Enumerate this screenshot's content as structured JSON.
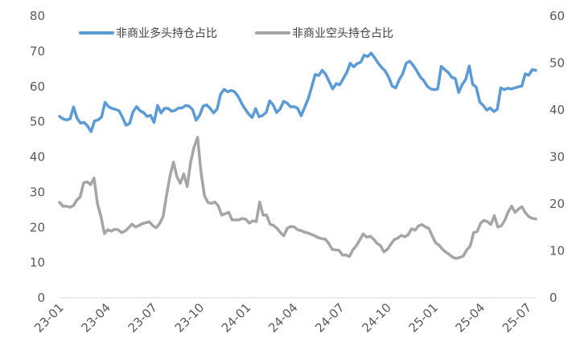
{
  "chart_data": {
    "type": "line",
    "title": "",
    "xlabel": "",
    "ylabel": "",
    "ylim_left": [
      0,
      80
    ],
    "ylim_right": [
      0,
      60
    ],
    "y_ticks_left": [
      "0",
      "10",
      "20",
      "30",
      "40",
      "50",
      "60",
      "70",
      "80"
    ],
    "y_ticks_right": [
      "0",
      "10",
      "20",
      "30",
      "40",
      "50",
      "60"
    ],
    "x_ticks": [
      "23-01",
      "23-04",
      "23-07",
      "23-10",
      "24-01",
      "24-04",
      "24-07",
      "24-10",
      "25-01",
      "25-04",
      "25-07"
    ],
    "grid": false,
    "legend_position": "top-left",
    "series": [
      {
        "name": "非商业多头持仓占比",
        "axis": "left",
        "color": "#5b9bd5",
        "values": [
          51.5,
          50.8,
          50.5,
          50.8,
          54.2,
          51,
          49.6,
          49.8,
          48.8,
          47.2,
          50.2,
          50.5,
          51.3,
          55.5,
          54.3,
          53.8,
          53.5,
          53.1,
          51.2,
          49,
          49.5,
          52.8,
          54.3,
          53.1,
          52.6,
          51.5,
          51.8,
          49.8,
          54.6,
          52.5,
          53.8,
          53.8,
          53,
          53.2,
          53.9,
          53.9,
          54.6,
          54.4,
          53.4,
          50.4,
          51.8,
          54.4,
          54.8,
          53.8,
          52.5,
          53.6,
          57.8,
          59.2,
          58.5,
          58.9,
          58.5,
          57.2,
          55.2,
          53.6,
          52.2,
          51.2,
          53.7,
          51.4,
          51.8,
          52.6,
          55.9,
          54.8,
          52.6,
          53.6,
          55.8,
          55.3,
          54.2,
          54.3,
          53.8,
          51.7,
          54.1,
          56.5,
          59.8,
          63.4,
          63.1,
          64.6,
          63.5,
          61.4,
          59.3,
          60.8,
          60.5,
          62.2,
          63.9,
          66.6,
          65.6,
          66.5,
          66.9,
          68.9,
          68.5,
          69.5,
          68.1,
          66.6,
          65.4,
          64.4,
          62.6,
          60.1,
          59.6,
          61.9,
          63.6,
          66.6,
          67.2,
          66,
          64.5,
          62.7,
          61.7,
          60.1,
          59.3,
          59.1,
          59.3,
          65.7,
          64.8,
          64,
          62.6,
          62.3,
          58.3,
          60.6,
          62,
          65.8,
          60.6,
          59.8,
          55.6,
          54.6,
          53.3,
          53.9,
          52.9,
          53.5,
          59.6,
          59.1,
          59.5,
          59.3,
          59.6,
          59.9,
          60.1,
          63.6,
          63.2,
          64.8,
          64.6
        ]
      },
      {
        "name": "非商业空头持仓占比",
        "axis": "right",
        "color": "#a5a5a5",
        "values": [
          20.3,
          19.5,
          19.5,
          19.3,
          19.6,
          20.8,
          21.5,
          24.5,
          24.7,
          24.1,
          25.5,
          20,
          17.3,
          13.7,
          14.5,
          14.2,
          14.6,
          14.5,
          13.9,
          14.2,
          14.9,
          15.7,
          15.1,
          15.4,
          15.8,
          16,
          16.2,
          15.4,
          14.9,
          15.8,
          17.3,
          21.8,
          25.9,
          28.9,
          25.8,
          24.4,
          26.4,
          23.7,
          28.9,
          32.1,
          34.2,
          26.7,
          21.7,
          20.3,
          20.1,
          20.4,
          19.6,
          17.6,
          17.9,
          18.2,
          16.6,
          16.6,
          16.6,
          16.9,
          16.7,
          15.9,
          16.4,
          16.2,
          20.4,
          17.6,
          17.6,
          15.7,
          15.4,
          14.8,
          13.9,
          13.2,
          14.8,
          15.2,
          15.1,
          14.5,
          14.3,
          14,
          13.8,
          13.5,
          13.2,
          12.8,
          12.6,
          12.5,
          11.6,
          10.3,
          10.2,
          10.1,
          9.1,
          9.1,
          8.8,
          10.2,
          11.1,
          12.3,
          13.6,
          12.9,
          13.1,
          12.5,
          11.6,
          11.1,
          9.8,
          10.3,
          11.4,
          12.4,
          12.7,
          13.3,
          13,
          13.4,
          14.7,
          14.4,
          15.3,
          15.6,
          15.1,
          14.8,
          13.2,
          11.7,
          11.2,
          10.3,
          9.7,
          9.2,
          8.6,
          8.4,
          8.6,
          8.9,
          10.2,
          11,
          13.9,
          14.1,
          15.9,
          16.5,
          16.2,
          15.6,
          17.5,
          15.1,
          15.3,
          16.5,
          18.3,
          19.5,
          18.2,
          18.9,
          19.4,
          18.1,
          17.3,
          16.9,
          16.8
        ]
      }
    ]
  }
}
